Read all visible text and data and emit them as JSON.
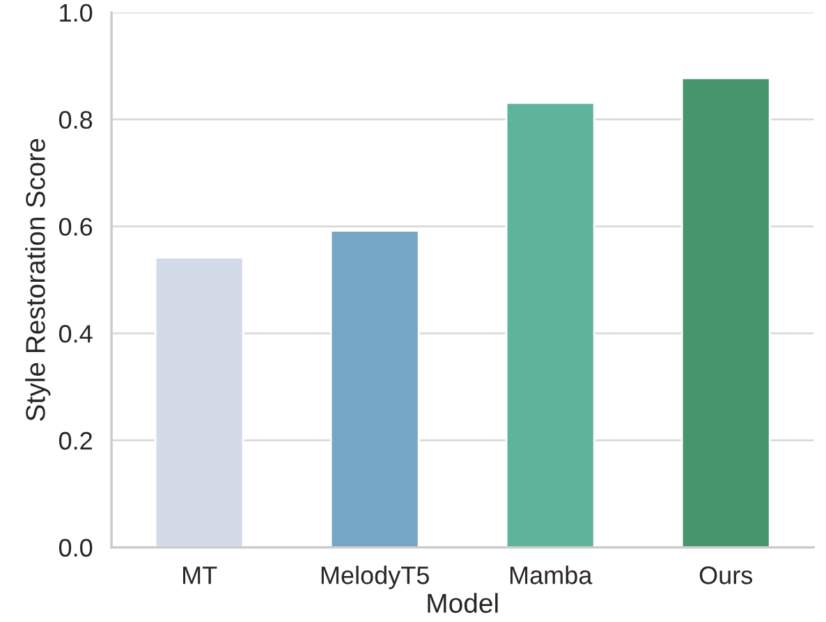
{
  "chart_data": {
    "type": "bar",
    "xlabel": "Model",
    "ylabel": "Style Restoration Score",
    "categories": [
      "MT",
      "MelodyT5",
      "Mamba",
      "Ours"
    ],
    "values": [
      0.542,
      0.592,
      0.831,
      0.877
    ],
    "colors": [
      "#d3dbe8",
      "#75a6c6",
      "#5eb49b",
      "#46956b"
    ],
    "ylim": [
      0,
      1.0
    ],
    "yticks": [
      {
        "value": 0,
        "label": "0.0"
      },
      {
        "value": 0.2,
        "label": "0.2"
      },
      {
        "value": 0.4,
        "label": "0.4"
      },
      {
        "value": 0.6,
        "label": "0.6"
      },
      {
        "value": 0.8,
        "label": "0.8"
      },
      {
        "value": 1.0,
        "label": "1.0"
      }
    ],
    "grid": "y"
  }
}
